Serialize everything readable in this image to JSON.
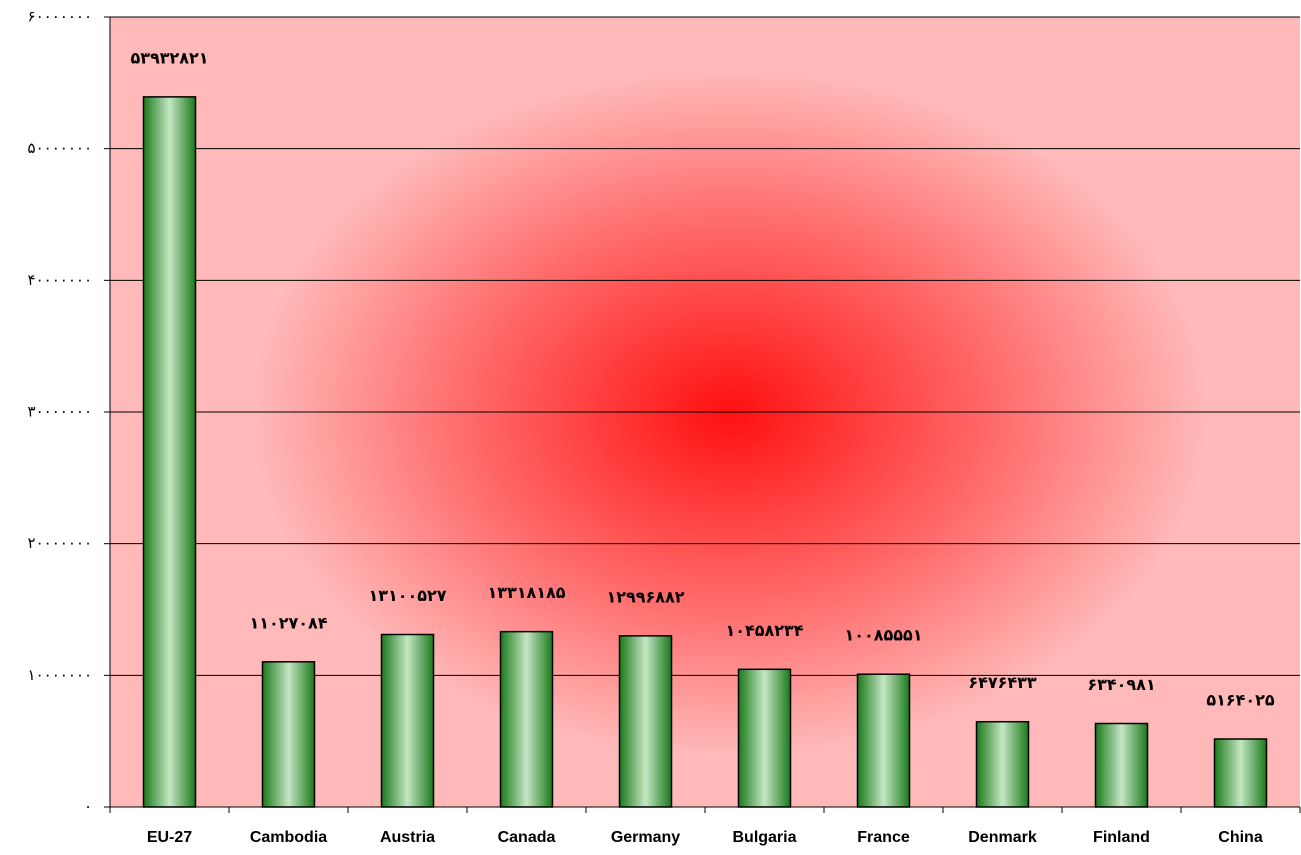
{
  "chart_data": {
    "type": "bar",
    "categories": [
      "EU-27",
      "Cambodia",
      "Austria",
      "Canada",
      "Germany",
      "Bulgaria",
      "France",
      "Denmark",
      "Finland",
      "China"
    ],
    "values": [
      53932821,
      11027084,
      13100527,
      13318185,
      12996882,
      10458234,
      10085551,
      6476433,
      6340981,
      5164025
    ],
    "value_labels": [
      "۵۳۹۳۲۸۲۱",
      "۱۱۰۲۷۰۸۴",
      "۱۳۱۰۰۵۲۷",
      "۱۳۳۱۸۱۸۵",
      "۱۲۹۹۶۸۸۲",
      "۱۰۴۵۸۲۳۴",
      "۱۰۰۸۵۵۵۱",
      "۶۴۷۶۴۳۳",
      "۶۳۴۰۹۸۱",
      "۵۱۶۴۰۲۵"
    ],
    "color": "#1e7d1e",
    "ylim": [
      0,
      60000000
    ],
    "yticks": [
      {
        "value": 0,
        "label": "۰"
      },
      {
        "value": 10000000,
        "label": "۱۰۰۰۰۰۰۰"
      },
      {
        "value": 20000000,
        "label": "۲۰۰۰۰۰۰۰"
      },
      {
        "value": 30000000,
        "label": "۳۰۰۰۰۰۰۰"
      },
      {
        "value": 40000000,
        "label": "۴۰۰۰۰۰۰۰"
      },
      {
        "value": 50000000,
        "label": "۵۰۰۰۰۰۰۰"
      },
      {
        "value": 60000000,
        "label": "۶۰۰۰۰۰۰۰"
      }
    ],
    "grid": true
  }
}
